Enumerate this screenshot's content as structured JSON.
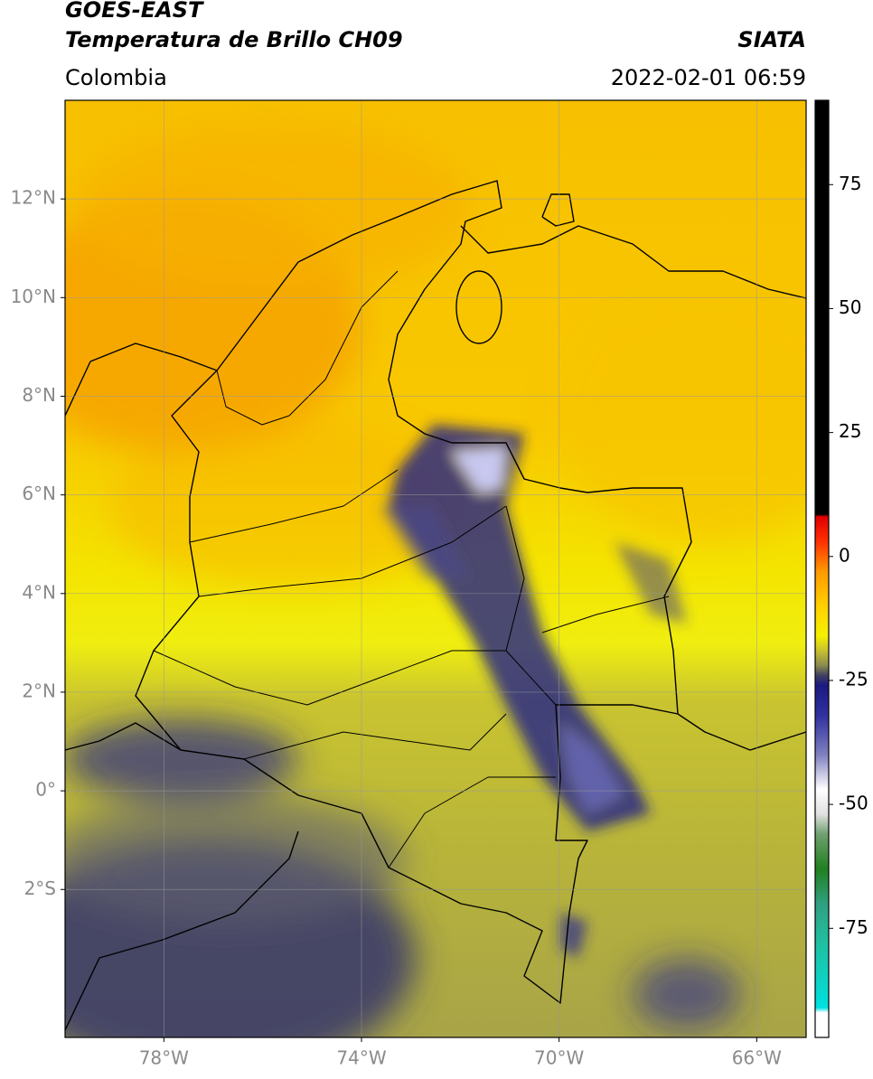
{
  "header": {
    "title": "GOES-EAST",
    "subtitle": "Temperatura de Brillo CH09",
    "agency": "SIATA",
    "region": "Colombia",
    "datetime": "2022-02-01 06:59"
  },
  "map": {
    "lonlim": [
      -80,
      -65
    ],
    "latlim": [
      -5,
      14
    ],
    "lonticks": [
      {
        "value": -78,
        "label": "78°W"
      },
      {
        "value": -74,
        "label": "74°W"
      },
      {
        "value": -70,
        "label": "70°W"
      },
      {
        "value": -66,
        "label": "66°W"
      }
    ],
    "latticks": [
      {
        "value": 12,
        "label": "12°N"
      },
      {
        "value": 10,
        "label": "10°N"
      },
      {
        "value": 8,
        "label": "8°N"
      },
      {
        "value": 6,
        "label": "6°N"
      },
      {
        "value": 4,
        "label": "4°N"
      },
      {
        "value": 2,
        "label": "2°N"
      },
      {
        "value": 0,
        "label": "0°"
      },
      {
        "value": -2,
        "label": "2°S"
      }
    ],
    "grid": true
  },
  "colorbar": {
    "lim": [
      -97,
      92
    ],
    "ticks": [
      75,
      50,
      25,
      0,
      -25,
      -50,
      -75
    ],
    "stops": [
      {
        "value": 92,
        "color": "#000000"
      },
      {
        "value": 8.5,
        "color": "#000000"
      },
      {
        "value": 8,
        "color": "#e00000"
      },
      {
        "value": 3,
        "color": "#ff3000"
      },
      {
        "value": -3,
        "color": "#ff9900"
      },
      {
        "value": -10,
        "color": "#ffd000"
      },
      {
        "value": -16,
        "color": "#f5f000"
      },
      {
        "value": -19,
        "color": "#c8c030"
      },
      {
        "value": -22,
        "color": "#8a8a50"
      },
      {
        "value": -24,
        "color": "#404060"
      },
      {
        "value": -26,
        "color": "#1a1a80"
      },
      {
        "value": -32,
        "color": "#3030a0"
      },
      {
        "value": -40,
        "color": "#8080c0"
      },
      {
        "value": -47,
        "color": "#ffffff"
      },
      {
        "value": -52,
        "color": "#e0e0e0"
      },
      {
        "value": -56,
        "color": "#70a070"
      },
      {
        "value": -63,
        "color": "#208020"
      },
      {
        "value": -70,
        "color": "#30a080"
      },
      {
        "value": -78,
        "color": "#20c0a0"
      },
      {
        "value": -91,
        "color": "#00e0e0"
      },
      {
        "value": -92,
        "color": "#ffffff"
      },
      {
        "value": -97,
        "color": "#ffffff"
      }
    ]
  }
}
